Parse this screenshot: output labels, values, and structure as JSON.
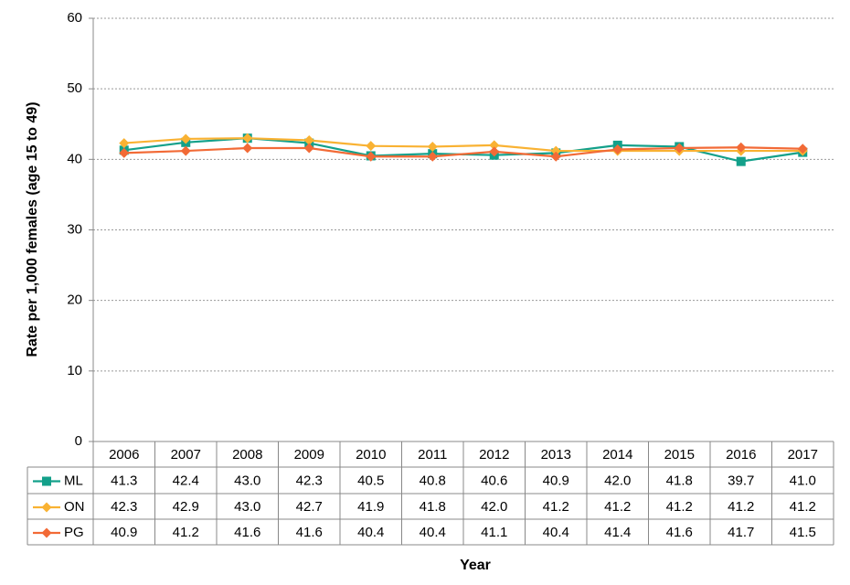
{
  "chart_data": {
    "type": "line",
    "y_label": "Rate per 1,000 females (age 15 to 49)",
    "x_label": "Year",
    "categories": [
      "2006",
      "2007",
      "2008",
      "2009",
      "2010",
      "2011",
      "2012",
      "2013",
      "2014",
      "2015",
      "2016",
      "2017"
    ],
    "ylim": [
      0,
      60
    ],
    "yticks": [
      0,
      10,
      20,
      30,
      40,
      50,
      60
    ],
    "grid": true,
    "series": [
      {
        "name": "ML",
        "color": "#13a08a",
        "marker": "square",
        "values": [
          41.3,
          42.4,
          43.0,
          42.3,
          40.5,
          40.8,
          40.6,
          40.9,
          42.0,
          41.8,
          39.7,
          41.0
        ],
        "value_labels": [
          "41.3",
          "42.4",
          "43.0",
          "42.3",
          "40.5",
          "40.8",
          "40.6",
          "40.9",
          "42.0",
          "41.8",
          "39.7",
          "41.0"
        ]
      },
      {
        "name": "ON",
        "color": "#f9b233",
        "marker": "diamond",
        "values": [
          42.3,
          42.9,
          43.0,
          42.7,
          41.9,
          41.8,
          42.0,
          41.2,
          41.2,
          41.2,
          41.2,
          41.2
        ],
        "value_labels": [
          "42.3",
          "42.9",
          "43.0",
          "42.7",
          "41.9",
          "41.8",
          "42.0",
          "41.2",
          "41.2",
          "41.2",
          "41.2",
          "41.2"
        ]
      },
      {
        "name": "PG",
        "color": "#f26a36",
        "marker": "diamond",
        "values": [
          40.9,
          41.2,
          41.6,
          41.6,
          40.4,
          40.4,
          41.1,
          40.4,
          41.4,
          41.6,
          41.7,
          41.5
        ],
        "value_labels": [
          "40.9",
          "41.2",
          "41.6",
          "41.6",
          "40.4",
          "40.4",
          "41.1",
          "40.4",
          "41.4",
          "41.6",
          "41.7",
          "41.5"
        ]
      }
    ]
  }
}
